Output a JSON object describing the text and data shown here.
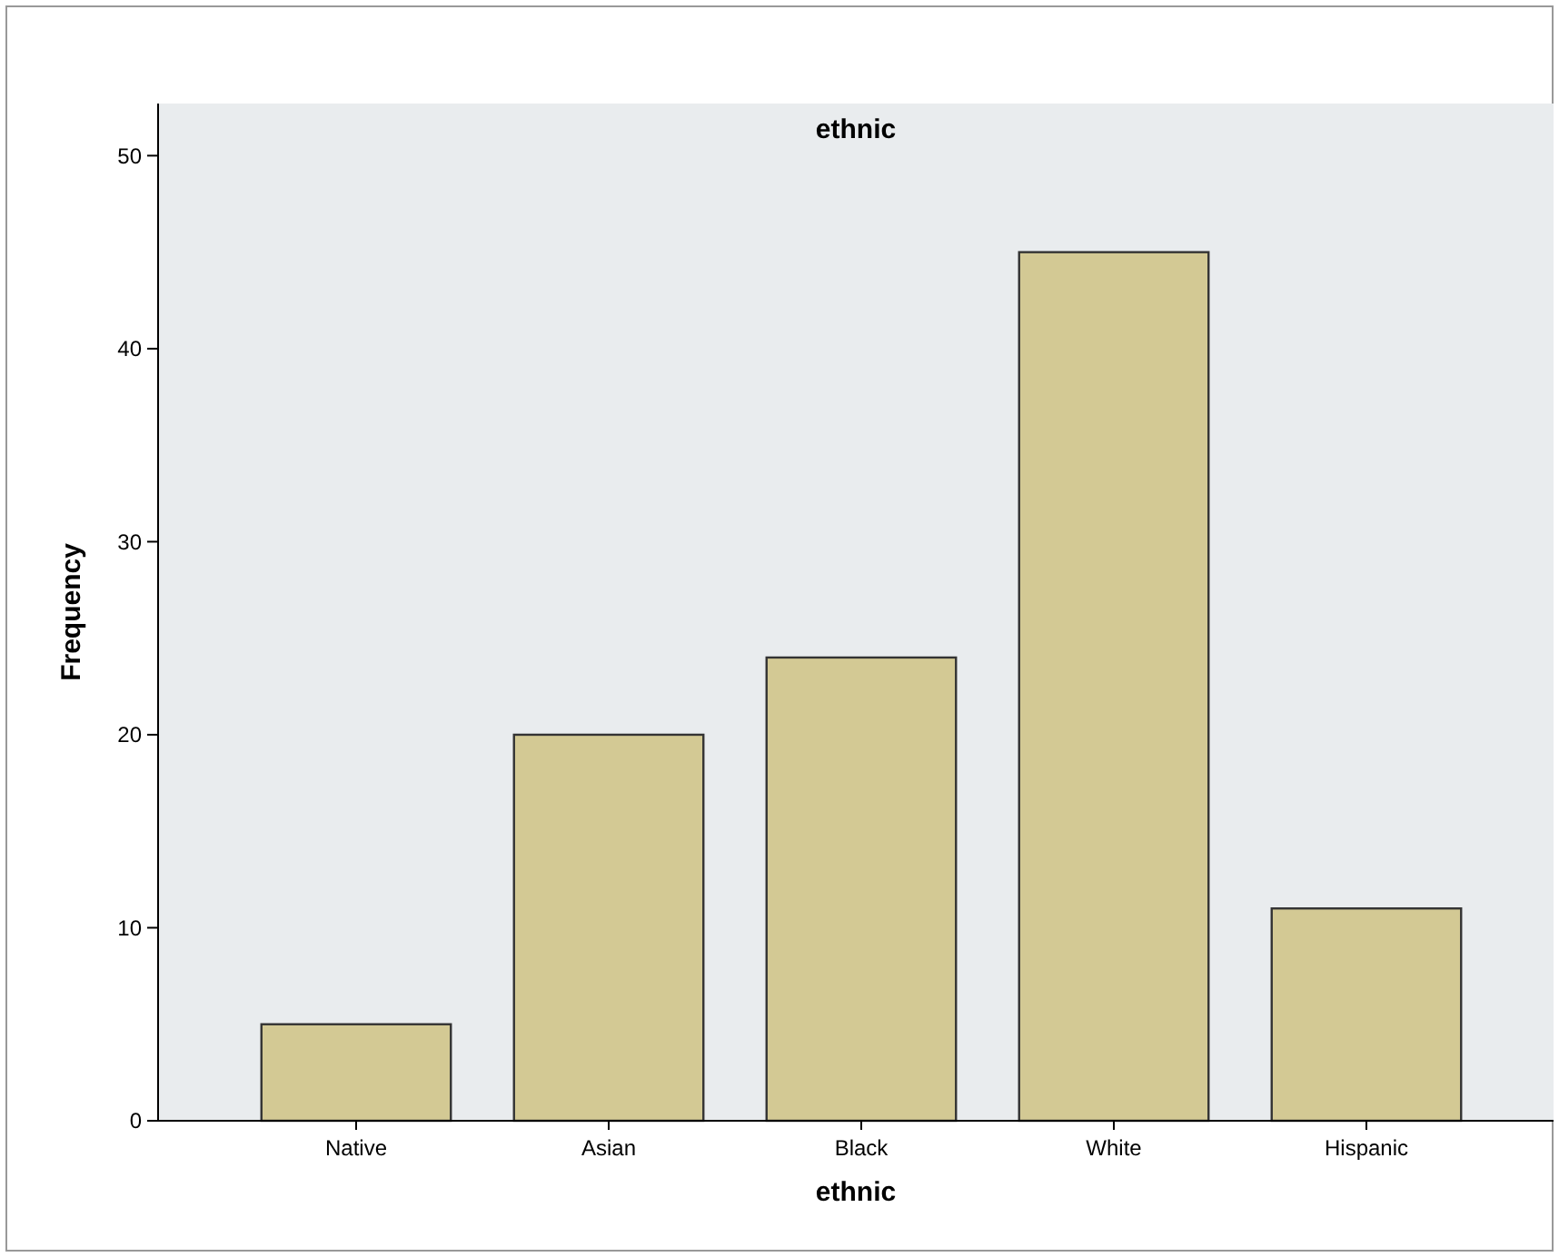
{
  "chart_data": {
    "type": "bar",
    "title": "ethnic",
    "xlabel": "ethnic",
    "ylabel": "Frequency",
    "categories": [
      "Native",
      "Asian",
      "Black",
      "White",
      "Hispanic"
    ],
    "values": [
      5,
      20,
      24,
      45,
      11
    ],
    "color": "#d3c994",
    "ylim": [
      0,
      52.7
    ],
    "yticks": [
      0,
      10,
      20,
      30,
      40,
      50
    ],
    "grid": false
  }
}
